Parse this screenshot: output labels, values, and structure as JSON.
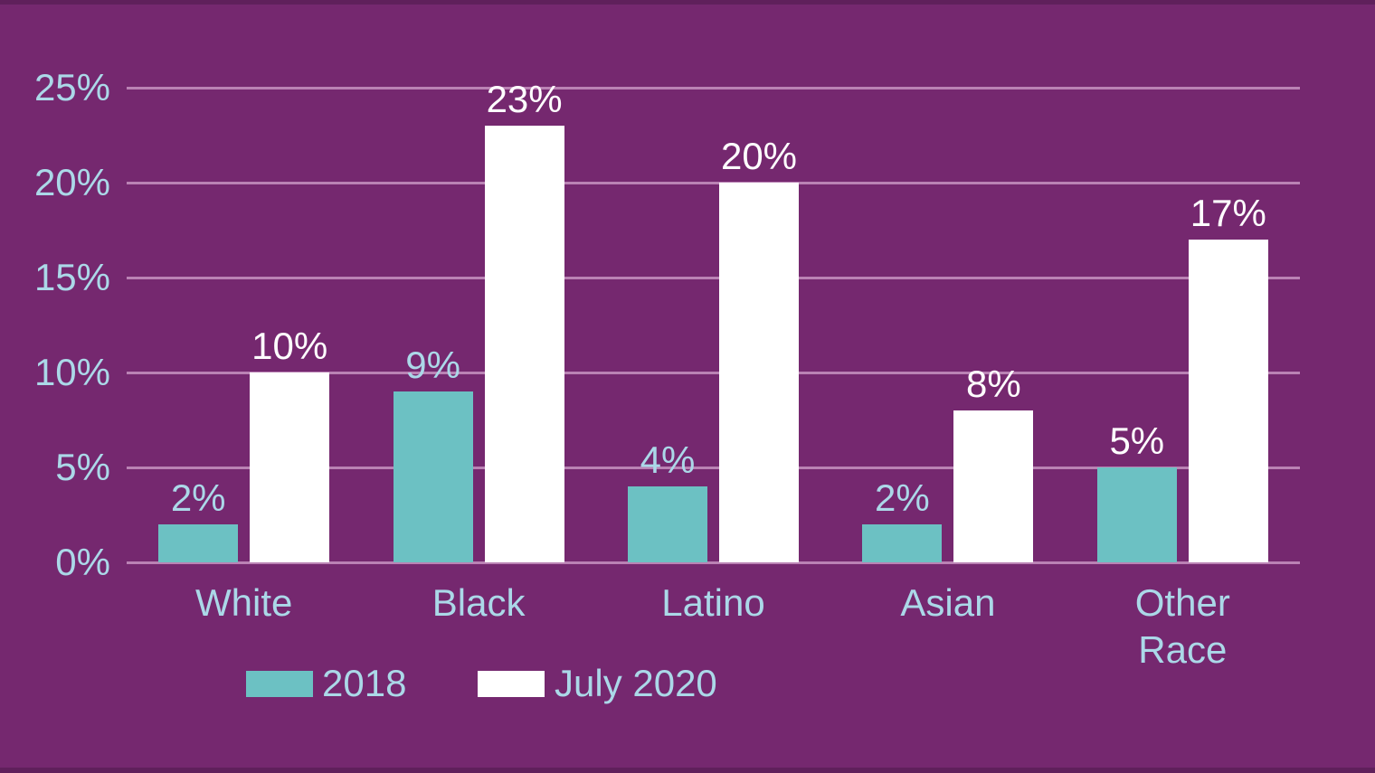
{
  "colors": {
    "background": "#75286F",
    "gridline": "#BA82B4",
    "axis_text": "#ABD8E8",
    "series_2018": "#6CC1C3",
    "series_july_2020": "#FFFFFF"
  },
  "chart_data": {
    "type": "bar",
    "categories": [
      "White",
      "Black",
      "Latino",
      "Asian",
      "Other Race"
    ],
    "series": [
      {
        "name": "2018",
        "color": "#6CC1C3",
        "values": [
          2,
          9,
          4,
          2,
          5
        ],
        "value_labels": [
          "2%",
          "9%",
          "4%",
          "2%",
          "5%"
        ],
        "label_colors": [
          "#ABD8E8",
          "#ABD8E8",
          "#ABD8E8",
          "#ABD8E8",
          "#FFFFFF"
        ]
      },
      {
        "name": "July 2020",
        "color": "#FFFFFF",
        "values": [
          10,
          23,
          20,
          8,
          17
        ],
        "value_labels": [
          "10%",
          "23%",
          "20%",
          "8%",
          "17%"
        ],
        "label_colors": [
          "#FFFFFF",
          "#FFFFFF",
          "#FFFFFF",
          "#FFFFFF",
          "#FFFFFF"
        ]
      }
    ],
    "title": "",
    "xlabel": "",
    "ylabel": "",
    "ylim": [
      0,
      25
    ],
    "yticks": [
      {
        "value": 0,
        "label": "0%"
      },
      {
        "value": 5,
        "label": "5%"
      },
      {
        "value": 10,
        "label": "10%"
      },
      {
        "value": 15,
        "label": "15%"
      },
      {
        "value": 20,
        "label": "20%"
      },
      {
        "value": 25,
        "label": "25%"
      }
    ],
    "grid": true,
    "legend_position": "bottom"
  },
  "legend": {
    "items": [
      {
        "label": "2018",
        "color": "#6CC1C3"
      },
      {
        "label": "July 2020",
        "color": "#FFFFFF"
      }
    ]
  }
}
